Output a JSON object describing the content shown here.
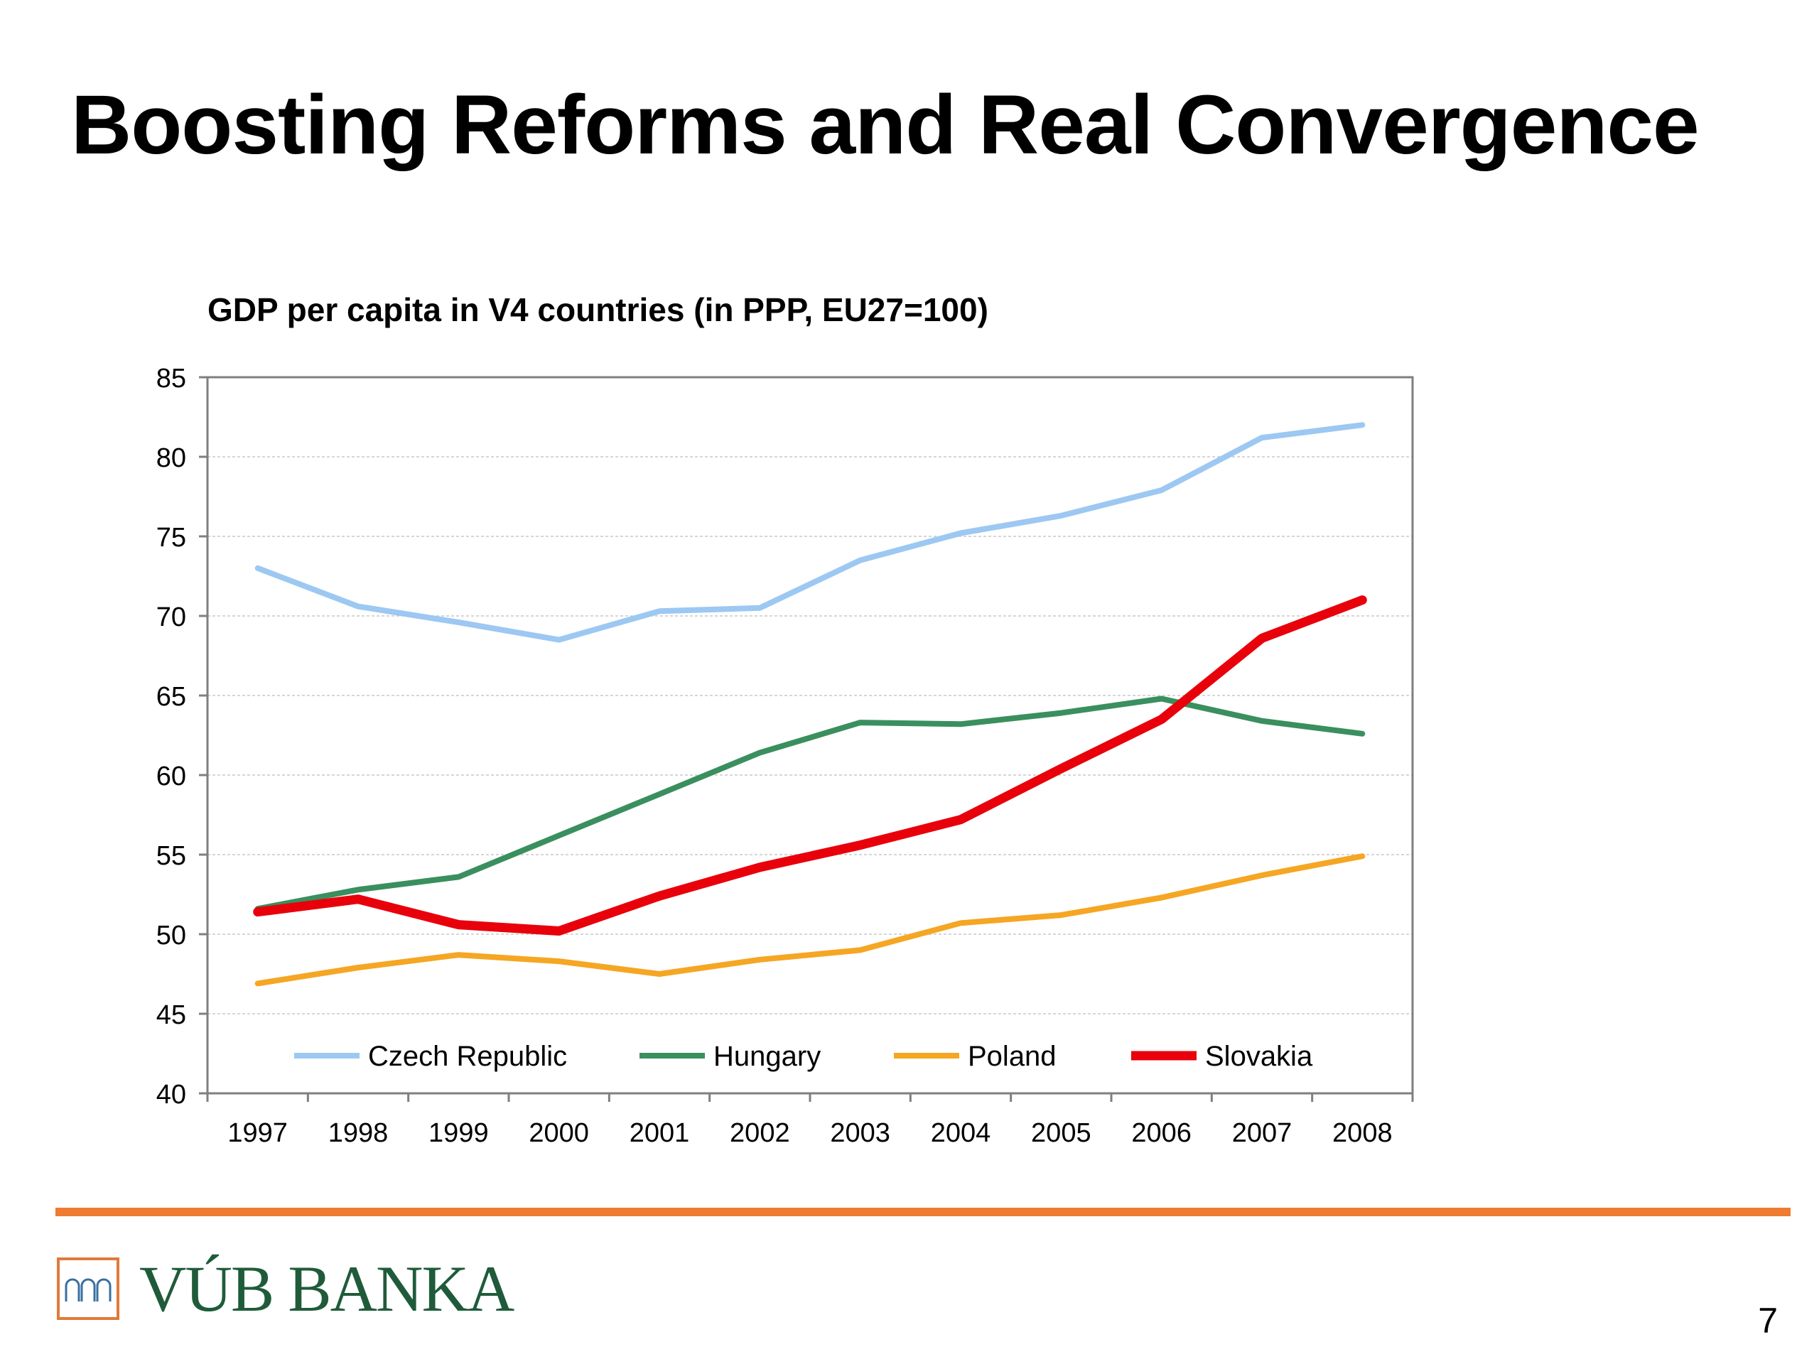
{
  "slide": {
    "title": "Boosting Reforms and Real Convergence",
    "page_number": "7"
  },
  "logo": {
    "text": "VÚB BANKA",
    "mark_icon": "arches-icon",
    "brand_color": "#1f5b3a",
    "mark_color": "#e07a3a"
  },
  "footer_rule_color": "#ee7b30",
  "chart_data": {
    "type": "line",
    "title": "GDP per capita in V4 countries (in PPP, EU27=100)",
    "x": [
      "1997",
      "1998",
      "1999",
      "2000",
      "2001",
      "2002",
      "2003",
      "2004",
      "2005",
      "2006",
      "2007",
      "2008"
    ],
    "ylim": [
      40,
      85
    ],
    "yticks": [
      40,
      45,
      50,
      55,
      60,
      65,
      70,
      75,
      80,
      85
    ],
    "grid": true,
    "legend_position": "bottom-inside",
    "series": [
      {
        "name": "Czech Republic",
        "color": "#9cc8f2",
        "values": [
          73.0,
          70.6,
          69.6,
          68.5,
          70.3,
          70.5,
          73.5,
          75.2,
          76.3,
          77.9,
          81.2,
          82.0
        ]
      },
      {
        "name": "Hungary",
        "color": "#3a8f5e",
        "values": [
          51.6,
          52.8,
          53.6,
          56.2,
          58.8,
          61.4,
          63.3,
          63.2,
          63.9,
          64.8,
          63.4,
          62.6
        ]
      },
      {
        "name": "Poland",
        "color": "#f5a623",
        "values": [
          46.9,
          47.9,
          48.7,
          48.3,
          47.5,
          48.4,
          49.0,
          50.7,
          51.2,
          52.3,
          53.7,
          54.9
        ]
      },
      {
        "name": "Slovakia",
        "color": "#e8000b",
        "values": [
          51.4,
          52.2,
          50.6,
          50.2,
          52.4,
          54.2,
          55.6,
          57.2,
          60.4,
          63.5,
          68.6,
          71.0
        ]
      }
    ]
  }
}
